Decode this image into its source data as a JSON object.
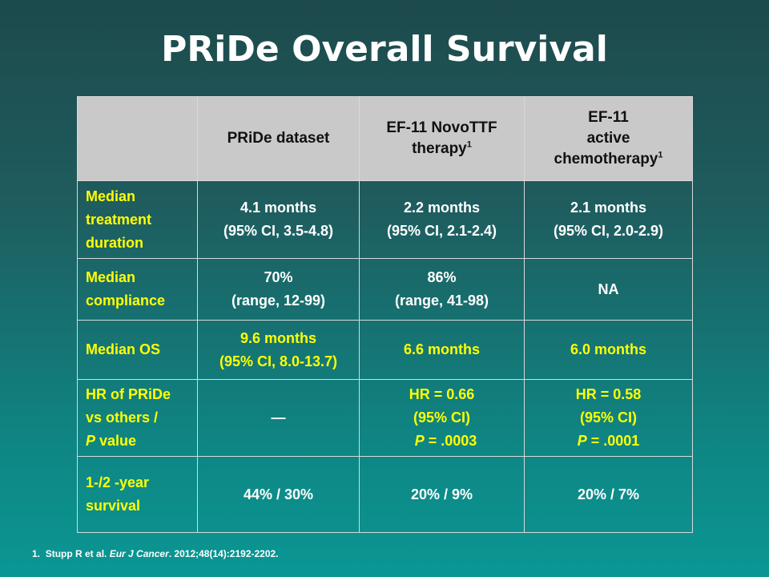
{
  "slide": {
    "title": "PRiDe Overall Survival"
  },
  "table": {
    "headers": {
      "col1": "PRiDe dataset",
      "col2_line1": "EF-11 NovoTTF",
      "col2_line2": "therapy",
      "col2_sup": "1",
      "col3_line1": "EF-11",
      "col3_line2": "active",
      "col3_line3": "chemotherapy",
      "col3_sup": "1"
    },
    "rows": [
      {
        "label": [
          "Median",
          "treatment",
          "duration"
        ],
        "c1": [
          "4.1 months",
          "(95% CI, 3.5-4.8)"
        ],
        "c2": [
          "2.2 months",
          "(95% CI, 2.1-2.4)"
        ],
        "c3": [
          "2.1 months",
          "(95% CI, 2.0-2.9)"
        ]
      },
      {
        "label": [
          "Median",
          "compliance"
        ],
        "c1": [
          "70%",
          "(range, 12-99)"
        ],
        "c2": [
          "86%",
          "(range, 41-98)"
        ],
        "c3": [
          "NA"
        ]
      },
      {
        "label": [
          "Median OS"
        ],
        "c1": [
          "9.6 months",
          "(95% CI, 8.0-13.7)"
        ],
        "c2": [
          "6.6 months"
        ],
        "c3": [
          "6.0 months"
        ]
      },
      {
        "label": [
          "HR of PRiDe",
          "vs others /",
          "value"
        ],
        "label_italic_prefix": "P",
        "c1": [
          "—"
        ],
        "c2": [
          "HR = 0.66",
          "(95% CI)",
          "= .0003"
        ],
        "c3": [
          "HR = 0.58",
          "(95% CI)",
          "= .0001"
        ],
        "p_symbol": "P"
      },
      {
        "label": [
          "1-/2 -year",
          "survival"
        ],
        "c1": [
          "44% / 30%"
        ],
        "c2": [
          "20% / 9%"
        ],
        "c3": [
          "20% / 7%"
        ]
      }
    ]
  },
  "footnote": {
    "number": "1.",
    "authors": "Stupp R et al.",
    "journal": "Eur J Cancer",
    "citation": ". 2012;48(14):2192-2202."
  },
  "colors": {
    "background_top": "#1d4a4c",
    "background_bottom": "#0a9794",
    "header_bg": "#c9c9c9",
    "label_yellow": "#ffff00",
    "text_white": "#ffffff"
  }
}
